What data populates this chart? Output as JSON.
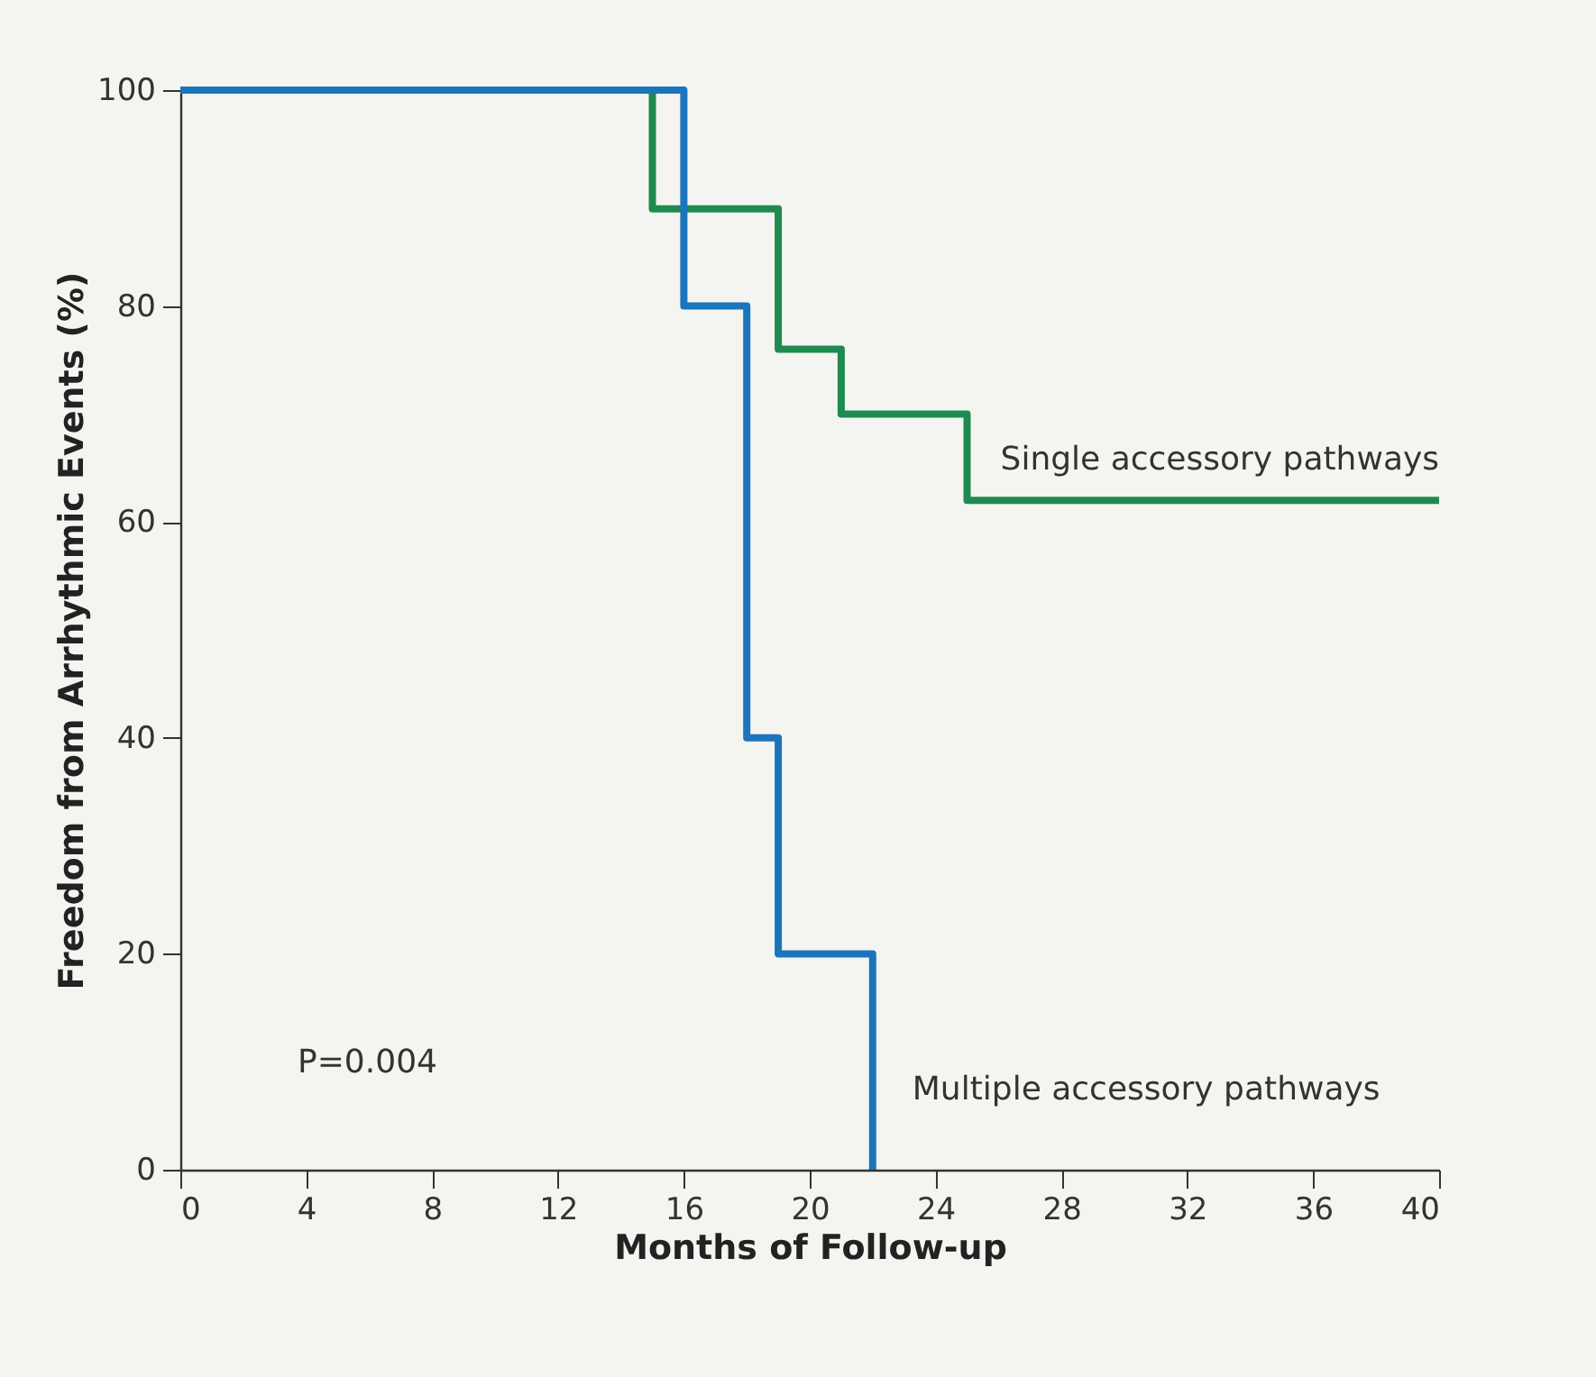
{
  "chart_data": {
    "type": "step",
    "xlabel": "Months of Follow-up",
    "ylabel": "Freedom from Arrhythmic Events (%)",
    "xlim": [
      0,
      40
    ],
    "xticks": [
      0,
      4,
      8,
      12,
      16,
      20,
      24,
      28,
      32,
      36,
      40
    ],
    "ylim": [
      0,
      100
    ],
    "yticks": [
      0,
      20,
      40,
      60,
      80,
      100
    ],
    "grid": false,
    "legend": false,
    "marker": "none",
    "line_style": "solid",
    "annotations": [
      "P=0.004"
    ],
    "series": [
      {
        "name": "Single accessory pathways",
        "color": "#1f8a4f",
        "x": [
          0,
          15,
          19,
          21,
          25,
          40
        ],
        "values": [
          100,
          89,
          76,
          70,
          62,
          62
        ]
      },
      {
        "name": "Multiple accessory pathways",
        "color": "#1b75bc",
        "x": [
          0,
          16,
          18,
          19,
          22
        ],
        "values": [
          100,
          80,
          40,
          20,
          0
        ]
      }
    ]
  }
}
